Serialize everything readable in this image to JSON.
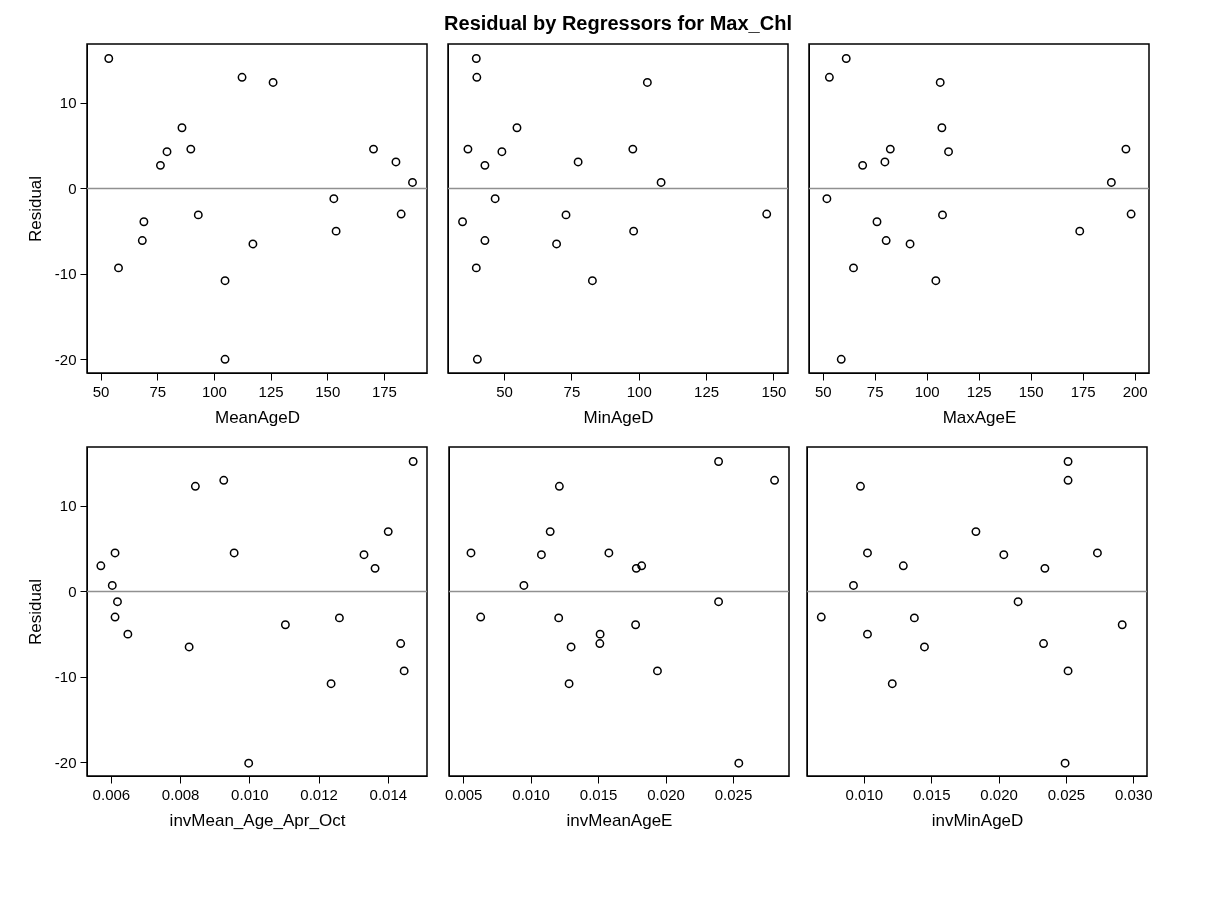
{
  "chart_data": [
    {
      "type": "scatter",
      "xlabel": "MeanAgeD",
      "ylabel": "Residual",
      "marker": "circle",
      "xlim": [
        44,
        194
      ],
      "xticks": [
        50,
        75,
        100,
        125,
        150,
        175
      ],
      "ylim": [
        -21.6,
        16.9
      ],
      "yticks": [
        -20,
        -10,
        0,
        10
      ],
      "ref_lines": [
        {
          "axis": "y",
          "value": 0,
          "color": "#909090"
        }
      ],
      "x": [
        53.6,
        57.9,
        68.4,
        69.1,
        76.4,
        79.3,
        85.9,
        89.8,
        93.1,
        104.9,
        104.9,
        112.4,
        117.2,
        126.1,
        152.9,
        153.9,
        170.4,
        180.3,
        182.6,
        187.6
      ],
      "series": [
        {
          "color": "#000000",
          "values": [
            15.2,
            -9.3,
            -6.1,
            -3.9,
            2.7,
            4.3,
            7.1,
            4.6,
            -3.1,
            -10.8,
            -20.0,
            13.0,
            -6.5,
            12.4,
            -1.2,
            -5.0,
            4.6,
            3.1,
            -3.0,
            0.7
          ]
        }
      ]
    },
    {
      "type": "scatter",
      "title": "Residual by Regressors for Max_Chl",
      "xlabel": "MinAgeD",
      "marker": "circle",
      "tick_labels": "x",
      "xlim": [
        29.2,
        155.4
      ],
      "xticks": [
        50,
        75,
        100,
        125,
        150
      ],
      "ylim": [
        -21.6,
        16.9
      ],
      "yticks": [
        -20,
        -10,
        0,
        10
      ],
      "ref_lines": [
        {
          "axis": "y",
          "value": 0,
          "color": "#909090"
        }
      ],
      "x": [
        39.7,
        39.9,
        103.2,
        54.8,
        36.6,
        49.2,
        42.9,
        77.5,
        97.8,
        108.3,
        46.7,
        34.6,
        73.0,
        147.5,
        42.9,
        69.5,
        98.1,
        39.7,
        82.8,
        40.1
      ],
      "series": [
        {
          "color": "#000000",
          "values": [
            15.2,
            13.0,
            12.4,
            7.1,
            4.6,
            4.3,
            2.7,
            3.1,
            4.6,
            0.7,
            -1.2,
            -3.9,
            -3.1,
            -3.0,
            -6.1,
            -6.5,
            -5.0,
            -9.3,
            -10.8,
            -20.0
          ]
        }
      ]
    },
    {
      "type": "scatter",
      "xlabel": "MaxAgeE",
      "marker": "circle",
      "tick_labels": "x",
      "xlim": [
        43.4,
        206.9
      ],
      "xticks": [
        50,
        75,
        100,
        125,
        150,
        175,
        200
      ],
      "ylim": [
        -21.6,
        16.9
      ],
      "yticks": [
        -20,
        -10,
        0,
        10
      ],
      "ref_lines": [
        {
          "axis": "y",
          "value": 0,
          "color": "#909090"
        }
      ],
      "x": [
        61.3,
        53.2,
        106.5,
        107.3,
        82.5,
        110.5,
        69.2,
        79.9,
        195.8,
        188.8,
        52.0,
        107.6,
        198.3,
        76.1,
        80.5,
        92.0,
        173.6,
        64.8,
        104.4,
        58.9
      ],
      "series": [
        {
          "color": "#000000",
          "values": [
            15.2,
            13.0,
            12.4,
            7.1,
            4.6,
            4.3,
            2.7,
            3.1,
            4.6,
            0.7,
            -1.2,
            -3.1,
            -3.0,
            -3.9,
            -6.1,
            -6.5,
            -5.0,
            -9.3,
            -10.8,
            -20.0
          ]
        }
      ]
    },
    {
      "type": "scatter",
      "xlabel": "invMean_Age_Apr_Oct",
      "ylabel": "Residual",
      "marker": "circle",
      "xlim": [
        0.00531,
        0.01513
      ],
      "xticks": [
        0.006,
        0.008,
        {
          "value": 0.01,
          "label": "0.010"
        },
        0.012,
        0.014
      ],
      "ylim": [
        -21.6,
        16.9
      ],
      "yticks": [
        -20,
        -10,
        0,
        10
      ],
      "ref_lines": [
        {
          "axis": "y",
          "value": 0,
          "color": "#909090"
        }
      ],
      "x": [
        0.00571,
        0.00612,
        0.00604,
        0.00619,
        0.00612,
        0.00649,
        0.00826,
        0.00844,
        0.00926,
        0.00956,
        0.00998,
        0.01104,
        0.01236,
        0.0126,
        0.01331,
        0.01363,
        0.01401,
        0.01437,
        0.01447,
        0.01473
      ],
      "series": [
        {
          "color": "#000000",
          "values": [
            3.0,
            4.5,
            0.7,
            -1.2,
            -3.0,
            -5.0,
            -6.5,
            12.3,
            13.0,
            4.5,
            -20.1,
            -3.9,
            -10.8,
            -3.1,
            4.3,
            2.7,
            7.0,
            -6.1,
            -9.3,
            15.2
          ]
        }
      ]
    },
    {
      "type": "scatter",
      "xlabel": "invMeanAgeE",
      "marker": "circle",
      "tick_labels": "x",
      "xlim": [
        0.00395,
        0.02915
      ],
      "xticks": [
        0.005,
        {
          "value": 0.01,
          "label": "0.010"
        },
        0.015,
        {
          "value": 0.02,
          "label": "0.020"
        },
        0.025
      ],
      "ylim": [
        -21.6,
        16.9
      ],
      "yticks": [
        -20,
        -10,
        0,
        10
      ],
      "ref_lines": [
        {
          "axis": "y",
          "value": 0,
          "color": "#909090"
        }
      ],
      "x": [
        0.00558,
        0.0063,
        0.0095,
        0.0108,
        0.01145,
        0.01213,
        0.01208,
        0.013,
        0.01285,
        0.01515,
        0.01513,
        0.0158,
        0.01783,
        0.01823,
        0.01778,
        0.0194,
        0.02393,
        0.02393,
        0.02543,
        0.02808
      ],
      "series": [
        {
          "color": "#000000",
          "values": [
            4.5,
            -3.0,
            0.7,
            4.3,
            7.0,
            12.3,
            -3.1,
            -6.5,
            -10.8,
            -5.0,
            -6.1,
            4.5,
            2.7,
            3.0,
            -3.9,
            -9.3,
            15.2,
            -1.2,
            -20.1,
            13.0
          ]
        }
      ]
    },
    {
      "type": "scatter",
      "xlabel": "invMinAgeD",
      "marker": "circle",
      "tick_labels": "x",
      "xlim": [
        0.00578,
        0.03102
      ],
      "xticks": [
        {
          "value": 0.01,
          "label": "0.010"
        },
        0.015,
        {
          "value": 0.02,
          "label": "0.020"
        },
        0.025,
        {
          "value": 0.03,
          "label": "0.030"
        }
      ],
      "ylim": [
        -21.6,
        16.9
      ],
      "yticks": [
        -20,
        -10,
        0,
        10
      ],
      "ref_lines": [
        {
          "axis": "y",
          "value": 0,
          "color": "#909090"
        }
      ],
      "x": [
        0.00684,
        0.00923,
        0.00975,
        0.01027,
        0.01027,
        0.01211,
        0.01293,
        0.01375,
        0.0145,
        0.01832,
        0.02039,
        0.02145,
        0.02344,
        0.02334,
        0.02516,
        0.02516,
        0.02516,
        0.02494,
        0.02734,
        0.02918
      ],
      "series": [
        {
          "color": "#000000",
          "values": [
            -3.0,
            0.7,
            12.3,
            4.5,
            -5.0,
            -10.8,
            3.0,
            -3.1,
            -6.5,
            7.0,
            4.3,
            -1.2,
            2.7,
            -6.1,
            15.2,
            13.0,
            -9.3,
            -20.1,
            4.5,
            -3.9
          ]
        }
      ]
    }
  ]
}
